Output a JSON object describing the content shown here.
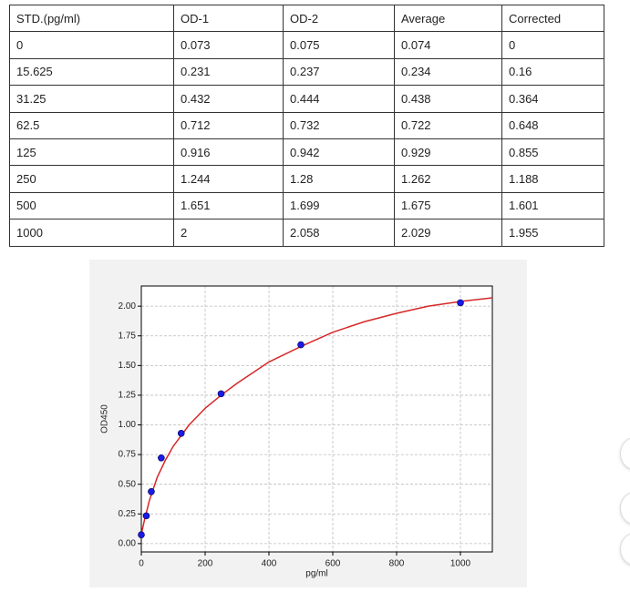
{
  "table": {
    "header": [
      "STD.(pg/ml)",
      "OD-1",
      "OD-2",
      "Average",
      "Corrected"
    ],
    "rows": [
      [
        "0",
        "0.073",
        "0.075",
        "0.074",
        "0"
      ],
      [
        "15.625",
        "0.231",
        "0.237",
        "0.234",
        "0.16"
      ],
      [
        "31.25",
        "0.432",
        "0.444",
        "0.438",
        "0.364"
      ],
      [
        "62.5",
        "0.712",
        "0.732",
        "0.722",
        "0.648"
      ],
      [
        "125",
        "0.916",
        "0.942",
        "0.929",
        "0.855"
      ],
      [
        "250",
        "1.244",
        "1.28",
        "1.262",
        "1.188"
      ],
      [
        "500",
        "1.651",
        "1.699",
        "1.675",
        "1.601"
      ],
      [
        "1000",
        "2",
        "2.058",
        "2.029",
        "1.955"
      ]
    ]
  },
  "chart_data": {
    "type": "scatter",
    "xlabel": "pg/ml",
    "ylabel": "OD450",
    "xlim": [
      0,
      1100
    ],
    "ylim": [
      -0.07,
      2.17
    ],
    "xticks": [
      0,
      200,
      400,
      600,
      800,
      1000
    ],
    "yticks": [
      {
        "value": 0,
        "label": "0.00"
      },
      {
        "value": 0.25,
        "label": "0.25"
      },
      {
        "value": 0.5,
        "label": "0.50"
      },
      {
        "value": 0.75,
        "label": "0.75"
      },
      {
        "value": 1,
        "label": "1.00"
      },
      {
        "value": 1.25,
        "label": "1.25"
      },
      {
        "value": 1.5,
        "label": "1.50"
      },
      {
        "value": 1.75,
        "label": "1.75"
      },
      {
        "value": 2,
        "label": "2.00"
      }
    ],
    "grid": true,
    "series": [
      {
        "type": "scatter",
        "color": "#1a1ae6",
        "x": [
          0,
          15.625,
          31.25,
          62.5,
          125,
          250,
          500,
          1000
        ],
        "values": [
          0.074,
          0.234,
          0.438,
          0.722,
          0.929,
          1.262,
          1.675,
          2.029
        ]
      },
      {
        "type": "line",
        "color": "#d62728",
        "x": [
          0,
          10,
          25,
          50,
          75,
          100,
          150,
          200,
          250,
          300,
          400,
          500,
          600,
          700,
          800,
          900,
          1000,
          1100
        ],
        "values": [
          0.08,
          0.2,
          0.36,
          0.56,
          0.7,
          0.82,
          1.0,
          1.14,
          1.25,
          1.35,
          1.53,
          1.66,
          1.78,
          1.87,
          1.94,
          2.0,
          2.04,
          2.07
        ]
      }
    ]
  }
}
